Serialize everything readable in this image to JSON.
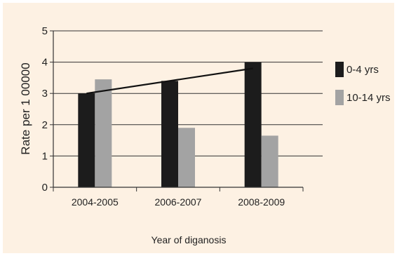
{
  "chart_data": {
    "type": "bar",
    "categories": [
      "2004-2005",
      "2006-2007",
      "2008-2009"
    ],
    "series": [
      {
        "name": "0-4 yrs",
        "values": [
          3.0,
          3.4,
          4.0
        ],
        "color": "#1c1c1c"
      },
      {
        "name": "10-14 yrs",
        "values": [
          3.45,
          1.9,
          1.65
        ],
        "color": "#a3a3a3"
      }
    ],
    "trend_line": {
      "series": "0-4 yrs",
      "from": 3.0,
      "to": 3.8,
      "color": "#111111"
    },
    "title": "",
    "xlabel": "Year of diganosis",
    "ylabel": "Rate per 1 00000",
    "ylim": [
      0,
      5
    ],
    "yticks": [
      0,
      1,
      2,
      3,
      4,
      5
    ],
    "grid": true,
    "legend_position": "right"
  }
}
